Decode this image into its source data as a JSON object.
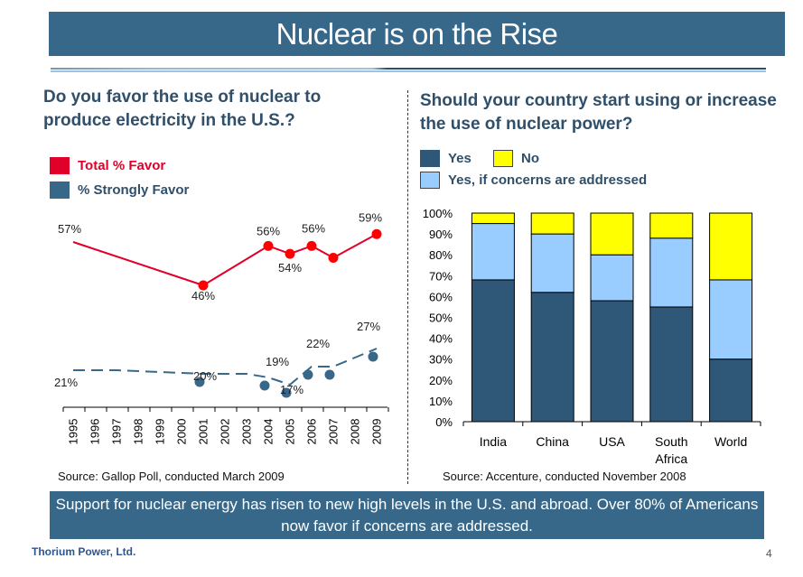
{
  "title": "Nuclear is on the Rise",
  "left_panel": {
    "question": "Do you favor the use of nuclear to produce electricity in the U.S.?",
    "legend": [
      {
        "label": "Total % Favor",
        "color": "#e0002a"
      },
      {
        "label": "% Strongly Favor",
        "color": "#376889"
      }
    ],
    "source": "Source: Gallop Poll, conducted March 2009"
  },
  "right_panel": {
    "question": "Should your country start using or increase the use of nuclear power?",
    "legend": [
      {
        "label": "Yes",
        "color": "#2f5878"
      },
      {
        "label": "No",
        "color": "#ffff00"
      },
      {
        "label": "Yes, if concerns are addressed",
        "color": "#99ccff"
      }
    ],
    "source": "Source: Accenture, conducted November 2008"
  },
  "summary": "Support for nuclear energy has risen to new high levels in the U.S. and abroad.  Over 80% of Americans now favor if concerns are addressed.",
  "footer": {
    "company": "Thorium Power, Ltd.",
    "page": "4"
  },
  "chart_data": [
    {
      "type": "line",
      "title": "Do you favor the use of nuclear to produce electricity in the U.S.?",
      "x": [
        "1995",
        "1996",
        "1997",
        "1998",
        "1999",
        "2000",
        "2001",
        "2002",
        "2003",
        "2004",
        "2005",
        "2006",
        "2007",
        "2008",
        "2009"
      ],
      "series": [
        {
          "name": "Total % Favor",
          "color": "#e0002a",
          "style": "solid",
          "points": [
            {
              "x": "1995",
              "y": 57,
              "label": "57%",
              "marker": false
            },
            {
              "x": "2001",
              "y": 46,
              "label": "46%",
              "marker": true
            },
            {
              "x": "2004",
              "y": 56,
              "label": "56%",
              "marker": true
            },
            {
              "x": "2005",
              "y": 54,
              "label": "54%",
              "marker": true
            },
            {
              "x": "2006",
              "y": 56,
              "label": "56%",
              "marker": true
            },
            {
              "x": "2007",
              "y": 53,
              "label": "",
              "marker": true
            },
            {
              "x": "2009",
              "y": 59,
              "label": "59%",
              "marker": true
            }
          ]
        },
        {
          "name": "% Strongly Favor",
          "color": "#376889",
          "style": "dashed",
          "points": [
            {
              "x": "1995",
              "y": 21,
              "label": "21%",
              "marker": false
            },
            {
              "x": "1996",
              "y": 21,
              "label": "",
              "marker": false
            },
            {
              "x": "1997",
              "y": 21,
              "label": "",
              "marker": false
            },
            {
              "x": "2001",
              "y": 20,
              "label": "20%",
              "marker": true
            },
            {
              "x": "2003",
              "y": 20,
              "label": "",
              "marker": false
            },
            {
              "x": "2004",
              "y": 19,
              "label": "19%",
              "marker": true
            },
            {
              "x": "2005",
              "y": 17,
              "label": "17%",
              "marker": true
            },
            {
              "x": "2006",
              "y": 22,
              "label": "22%",
              "marker": true
            },
            {
              "x": "2007",
              "y": 22,
              "label": "",
              "marker": true
            },
            {
              "x": "2009",
              "y": 27,
              "label": "27%",
              "marker": true
            }
          ]
        }
      ],
      "xlabel": "",
      "ylabel": "",
      "grid": false
    },
    {
      "type": "bar",
      "stacked": true,
      "title": "Should your country start using or increase the use of nuclear power?",
      "categories": [
        "India",
        "China",
        "USA",
        "South Africa",
        "World"
      ],
      "series": [
        {
          "name": "Yes",
          "color": "#2f5878",
          "values": [
            68,
            62,
            58,
            55,
            30
          ]
        },
        {
          "name": "Yes, if concerns are addressed",
          "color": "#99ccff",
          "values": [
            27,
            28,
            22,
            33,
            38
          ]
        },
        {
          "name": "No",
          "color": "#ffff00",
          "values": [
            5,
            10,
            20,
            12,
            32
          ]
        }
      ],
      "yticks": [
        "0%",
        "10%",
        "20%",
        "30%",
        "40%",
        "50%",
        "60%",
        "70%",
        "80%",
        "90%",
        "100%"
      ],
      "ylim": [
        0,
        100
      ],
      "grid": false
    }
  ]
}
